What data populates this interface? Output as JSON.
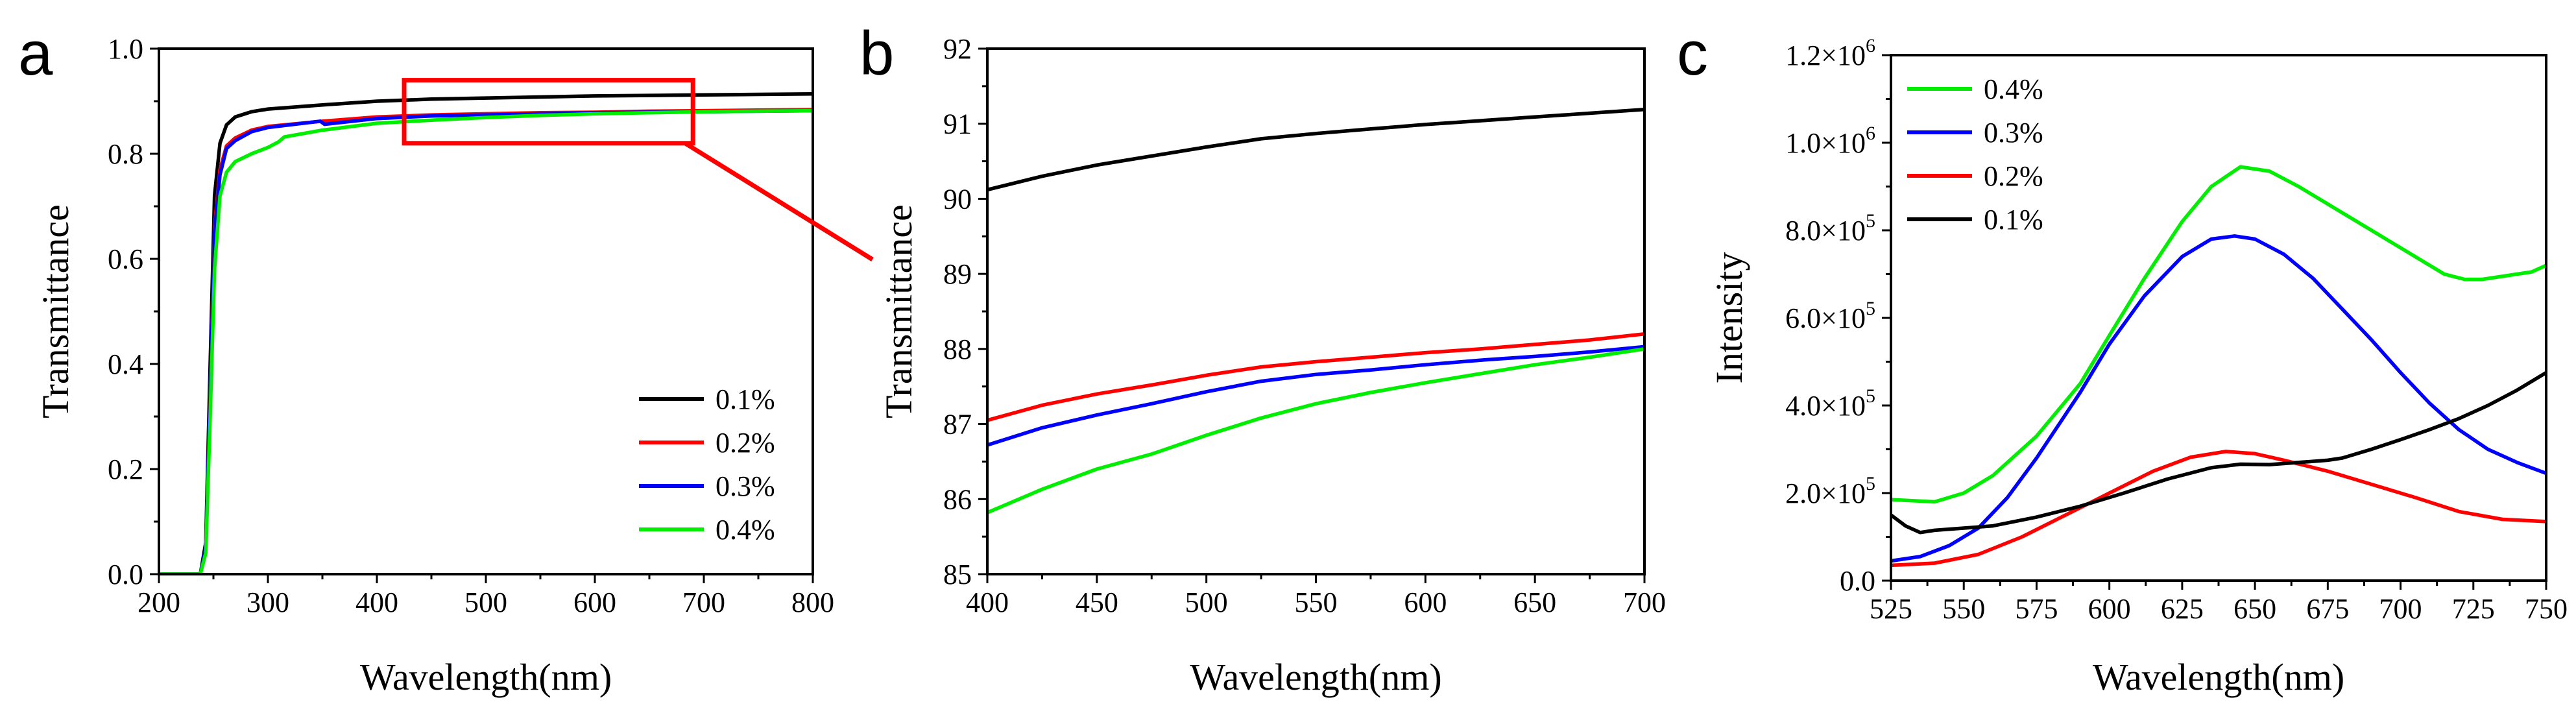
{
  "colors": {
    "black": "#000000",
    "red": "#ff0000",
    "blue": "#0000ff",
    "green": "#00ee00",
    "zoom_box": "#ff0000"
  },
  "chart_data": [
    {
      "id": "a",
      "panel_label": "a",
      "type": "line",
      "xlabel": "Wavelength(nm)",
      "ylabel": "Transmittance",
      "xlim": [
        200,
        800
      ],
      "ylim": [
        0.0,
        1.0
      ],
      "xticks": [
        200,
        300,
        400,
        500,
        600,
        700,
        800
      ],
      "xtick_labels": [
        "200",
        "300",
        "400",
        "500",
        "600",
        "700",
        "800"
      ],
      "yticks": [
        0.0,
        0.2,
        0.4,
        0.6,
        0.8,
        1.0
      ],
      "ytick_labels": [
        "0.0",
        "0.2",
        "0.4",
        "0.6",
        "0.8",
        "1.0"
      ],
      "legend_position": "lower-right",
      "annotation": {
        "type": "zoom-box",
        "x_range": [
          425,
          690
        ],
        "y_range": [
          0.82,
          0.94
        ],
        "points_to": "b"
      },
      "series": [
        {
          "name": "0.1%",
          "color": "#000000",
          "x": [
            200,
            238,
            243,
            247,
            251,
            256,
            262,
            270,
            285,
            300,
            350,
            400,
            450,
            500,
            550,
            600,
            650,
            700,
            750,
            800
          ],
          "y": [
            0.0,
            0.0,
            0.06,
            0.4,
            0.72,
            0.82,
            0.855,
            0.87,
            0.88,
            0.885,
            0.893,
            0.9,
            0.904,
            0.906,
            0.908,
            0.91,
            0.911,
            0.912,
            0.913,
            0.914
          ]
        },
        {
          "name": "0.2%",
          "color": "#ff0000",
          "x": [
            200,
            238,
            243,
            247,
            251,
            256,
            262,
            270,
            285,
            300,
            350,
            400,
            450,
            500,
            550,
            600,
            650,
            700,
            750,
            800
          ],
          "y": [
            0.0,
            0.0,
            0.05,
            0.35,
            0.66,
            0.77,
            0.815,
            0.83,
            0.845,
            0.852,
            0.862,
            0.87,
            0.874,
            0.876,
            0.878,
            0.879,
            0.881,
            0.882,
            0.883,
            0.884
          ]
        },
        {
          "name": "0.3%",
          "color": "#0000ff",
          "x": [
            200,
            238,
            243,
            247,
            251,
            256,
            262,
            270,
            285,
            300,
            348,
            352,
            400,
            450,
            500,
            550,
            600,
            650,
            700,
            750,
            800
          ],
          "y": [
            0.0,
            0.0,
            0.05,
            0.34,
            0.65,
            0.76,
            0.81,
            0.825,
            0.842,
            0.85,
            0.862,
            0.856,
            0.867,
            0.872,
            0.874,
            0.876,
            0.878,
            0.879,
            0.88,
            0.881,
            0.882
          ]
        },
        {
          "name": "0.4%",
          "color": "#00ee00",
          "x": [
            200,
            238,
            243,
            247,
            251,
            256,
            262,
            270,
            285,
            300,
            310,
            315,
            350,
            400,
            450,
            500,
            550,
            600,
            650,
            700,
            750,
            800
          ],
          "y": [
            0.0,
            0.0,
            0.04,
            0.3,
            0.58,
            0.72,
            0.765,
            0.785,
            0.8,
            0.812,
            0.823,
            0.832,
            0.845,
            0.858,
            0.864,
            0.869,
            0.873,
            0.876,
            0.878,
            0.88,
            0.881,
            0.882
          ]
        }
      ]
    },
    {
      "id": "b",
      "panel_label": "b",
      "type": "line",
      "xlabel": "Wavelength(nm)",
      "ylabel": "Transmittance",
      "xlim": [
        400,
        700
      ],
      "ylim": [
        85,
        92
      ],
      "xticks": [
        400,
        450,
        500,
        550,
        600,
        650,
        700
      ],
      "xtick_labels": [
        "400",
        "450",
        "500",
        "550",
        "600",
        "650",
        "700"
      ],
      "yticks": [
        85,
        86,
        87,
        88,
        89,
        90,
        91,
        92
      ],
      "ytick_labels": [
        "85",
        "86",
        "87",
        "88",
        "89",
        "90",
        "91",
        "92"
      ],
      "series": [
        {
          "name": "0.1%",
          "color": "#000000",
          "x": [
            400,
            425,
            450,
            475,
            500,
            525,
            550,
            575,
            600,
            625,
            650,
            675,
            700
          ],
          "y": [
            90.12,
            90.3,
            90.45,
            90.57,
            90.69,
            90.8,
            90.87,
            90.93,
            90.99,
            91.04,
            91.09,
            91.14,
            91.19
          ]
        },
        {
          "name": "0.2%",
          "color": "#ff0000",
          "x": [
            400,
            425,
            450,
            475,
            500,
            525,
            550,
            575,
            600,
            625,
            650,
            675,
            700
          ],
          "y": [
            87.05,
            87.25,
            87.4,
            87.52,
            87.65,
            87.76,
            87.83,
            87.89,
            87.95,
            88.0,
            88.06,
            88.12,
            88.2
          ]
        },
        {
          "name": "0.3%",
          "color": "#0000ff",
          "x": [
            400,
            425,
            450,
            475,
            500,
            525,
            550,
            575,
            600,
            625,
            650,
            675,
            700
          ],
          "y": [
            86.72,
            86.95,
            87.12,
            87.27,
            87.43,
            87.57,
            87.66,
            87.72,
            87.79,
            87.85,
            87.9,
            87.96,
            88.03
          ]
        },
        {
          "name": "0.4%",
          "color": "#00ee00",
          "x": [
            400,
            425,
            450,
            475,
            500,
            525,
            550,
            575,
            600,
            625,
            650,
            675,
            700
          ],
          "y": [
            85.82,
            86.13,
            86.4,
            86.6,
            86.85,
            87.08,
            87.27,
            87.42,
            87.55,
            87.67,
            87.79,
            87.89,
            88.0
          ]
        }
      ]
    },
    {
      "id": "c",
      "panel_label": "c",
      "type": "line",
      "xlabel": "Wavelength(nm)",
      "ylabel": "Intensity",
      "xlim": [
        525,
        750
      ],
      "ylim": [
        0,
        1200000
      ],
      "xticks": [
        525,
        550,
        575,
        600,
        625,
        650,
        675,
        700,
        725,
        750
      ],
      "xtick_labels": [
        "525",
        "550",
        "575",
        "600",
        "625",
        "650",
        "675",
        "700",
        "725",
        "750"
      ],
      "yticks": [
        0,
        200000,
        400000,
        600000,
        800000,
        1000000,
        1200000
      ],
      "ytick_labels": [
        {
          "mantissa": "0.0",
          "exp": ""
        },
        {
          "mantissa": "2.0×10",
          "exp": "5"
        },
        {
          "mantissa": "4.0×10",
          "exp": "5"
        },
        {
          "mantissa": "6.0×10",
          "exp": "5"
        },
        {
          "mantissa": "8.0×10",
          "exp": "5"
        },
        {
          "mantissa": "1.0×10",
          "exp": "6"
        },
        {
          "mantissa": "1.2×10",
          "exp": "6"
        }
      ],
      "legend_position": "top-left",
      "series": [
        {
          "name": "0.4%",
          "color": "#00ee00",
          "x": [
            525,
            540,
            550,
            560,
            575,
            590,
            600,
            612,
            625,
            635,
            645,
            655,
            665,
            675,
            690,
            705,
            715,
            722,
            728,
            735,
            745,
            750
          ],
          "y": [
            185000,
            180000,
            200000,
            240000,
            330000,
            450000,
            560000,
            690000,
            820000,
            900000,
            945000,
            935000,
            900000,
            860000,
            800000,
            740000,
            700000,
            688000,
            688000,
            695000,
            705000,
            720000
          ]
        },
        {
          "name": "0.3%",
          "color": "#0000ff",
          "x": [
            525,
            535,
            545,
            555,
            565,
            575,
            590,
            600,
            612,
            625,
            635,
            643,
            650,
            660,
            670,
            680,
            690,
            700,
            710,
            720,
            730,
            740,
            750
          ],
          "y": [
            45000,
            55000,
            80000,
            120000,
            190000,
            280000,
            430000,
            540000,
            650000,
            740000,
            780000,
            787000,
            780000,
            745000,
            690000,
            620000,
            550000,
            475000,
            405000,
            345000,
            300000,
            270000,
            245000
          ]
        },
        {
          "name": "0.2%",
          "color": "#ff0000",
          "x": [
            525,
            540,
            555,
            570,
            585,
            600,
            615,
            628,
            640,
            650,
            660,
            675,
            690,
            705,
            720,
            735,
            750
          ],
          "y": [
            35000,
            40000,
            60000,
            100000,
            150000,
            200000,
            250000,
            282000,
            295000,
            290000,
            275000,
            250000,
            220000,
            190000,
            158000,
            140000,
            135000
          ]
        },
        {
          "name": "0.1%",
          "color": "#000000",
          "x": [
            525,
            530,
            535,
            540,
            550,
            560,
            575,
            590,
            605,
            620,
            635,
            645,
            655,
            665,
            675,
            680,
            690,
            700,
            710,
            720,
            730,
            740,
            750
          ],
          "y": [
            150000,
            125000,
            110000,
            115000,
            120000,
            125000,
            145000,
            170000,
            200000,
            232000,
            258000,
            266000,
            265000,
            270000,
            275000,
            280000,
            300000,
            322000,
            345000,
            370000,
            400000,
            435000,
            475000
          ]
        }
      ]
    }
  ]
}
